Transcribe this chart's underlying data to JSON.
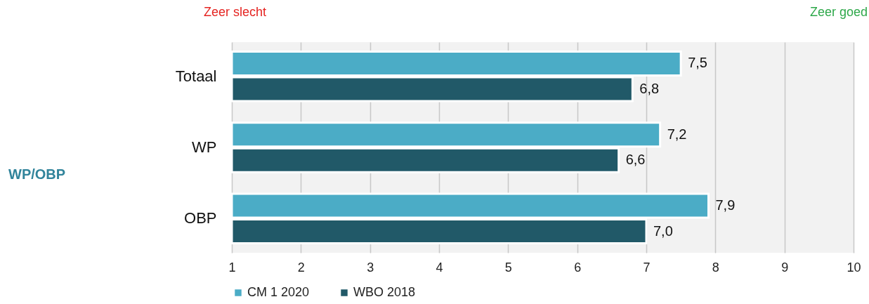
{
  "chart_data": {
    "type": "bar",
    "orientation": "horizontal",
    "categories": [
      "Totaal",
      "WP",
      "OBP"
    ],
    "series": [
      {
        "name": "CM 1 2020",
        "color": "#4bacc6",
        "values": [
          7.5,
          7.2,
          7.9
        ],
        "value_labels": [
          "7,5",
          "7,2",
          "7,9"
        ]
      },
      {
        "name": "WBO 2018",
        "color": "#215968",
        "values": [
          6.8,
          6.6,
          7.0
        ],
        "value_labels": [
          "6,8",
          "6,6",
          "7,0"
        ]
      }
    ],
    "xlim": [
      1,
      10
    ],
    "xticks": [
      1,
      2,
      3,
      4,
      5,
      6,
      7,
      8,
      9,
      10
    ],
    "grid": "x",
    "legend": "bottom",
    "annotations": [
      "Zeer slecht",
      "Zeer goed",
      "WP/OBP"
    ]
  }
}
